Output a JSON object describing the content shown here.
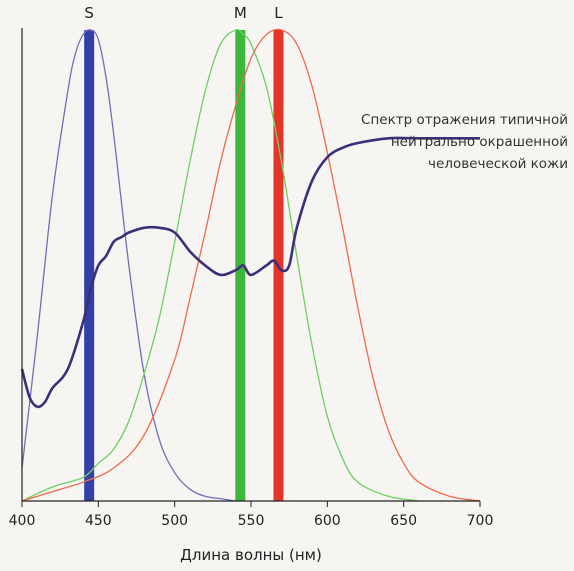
{
  "chart_data": {
    "type": "line",
    "title": "",
    "xlabel": "Длина волны (нм)",
    "ylabel": "",
    "xlim": [
      400,
      700
    ],
    "ylim": [
      0,
      1
    ],
    "x_ticks": [
      400,
      450,
      500,
      550,
      600,
      650,
      700
    ],
    "grid": false,
    "legend": "none",
    "series": [
      {
        "name": "S",
        "color": "#6f6fb8",
        "x": [
          400,
          410,
          420,
          430,
          435,
          440,
          445,
          450,
          455,
          460,
          470,
          480,
          490,
          500,
          510,
          520,
          530,
          540
        ],
        "y": [
          0.07,
          0.35,
          0.65,
          0.87,
          0.95,
          0.99,
          1.0,
          0.98,
          0.9,
          0.78,
          0.5,
          0.27,
          0.13,
          0.06,
          0.025,
          0.01,
          0.005,
          0.0
        ]
      },
      {
        "name": "M",
        "color": "#6fd060",
        "x": [
          400,
          420,
          440,
          450,
          460,
          470,
          480,
          490,
          500,
          510,
          520,
          530,
          540,
          545,
          550,
          560,
          570,
          580,
          590,
          600,
          610,
          620,
          640,
          660
        ],
        "y": [
          0.0,
          0.03,
          0.05,
          0.08,
          0.11,
          0.17,
          0.27,
          0.39,
          0.55,
          0.72,
          0.87,
          0.97,
          1.0,
          0.99,
          0.97,
          0.88,
          0.72,
          0.52,
          0.33,
          0.18,
          0.09,
          0.04,
          0.01,
          0.0
        ]
      },
      {
        "name": "L",
        "color": "#ee6a4a",
        "x": [
          400,
          420,
          440,
          460,
          480,
          500,
          510,
          520,
          530,
          540,
          550,
          560,
          570,
          580,
          590,
          600,
          610,
          620,
          630,
          640,
          650,
          660,
          680,
          700
        ],
        "y": [
          0.0,
          0.02,
          0.04,
          0.07,
          0.14,
          0.3,
          0.43,
          0.57,
          0.72,
          0.84,
          0.94,
          0.99,
          1.0,
          0.97,
          0.88,
          0.74,
          0.58,
          0.41,
          0.26,
          0.15,
          0.08,
          0.04,
          0.01,
          0.0
        ]
      },
      {
        "name": "Спектр отражения типичной нейтрально окрашенной человеческой кожи",
        "color": "#3d2f7a",
        "x": [
          400,
          405,
          410,
          415,
          420,
          430,
          440,
          445,
          450,
          455,
          460,
          465,
          470,
          480,
          490,
          500,
          510,
          520,
          530,
          540,
          545,
          550,
          560,
          565,
          570,
          575,
          580,
          590,
          600,
          610,
          620,
          640,
          660,
          680,
          700
        ],
        "y": [
          0.28,
          0.22,
          0.2,
          0.21,
          0.24,
          0.28,
          0.38,
          0.45,
          0.5,
          0.52,
          0.55,
          0.56,
          0.57,
          0.58,
          0.58,
          0.57,
          0.53,
          0.5,
          0.48,
          0.49,
          0.5,
          0.48,
          0.5,
          0.51,
          0.49,
          0.5,
          0.58,
          0.68,
          0.73,
          0.75,
          0.76,
          0.77,
          0.77,
          0.77,
          0.77
        ]
      }
    ],
    "peak_bars": [
      {
        "label": "S",
        "x": 444,
        "color": "#3340a8"
      },
      {
        "label": "M",
        "x": 543,
        "color": "#3bb83b"
      },
      {
        "label": "L",
        "x": 568,
        "color": "#e33528"
      }
    ],
    "annotation": [
      "Спектр отражения типичной",
      "нейтрально окрашенной",
      "человеческой кожи"
    ]
  }
}
